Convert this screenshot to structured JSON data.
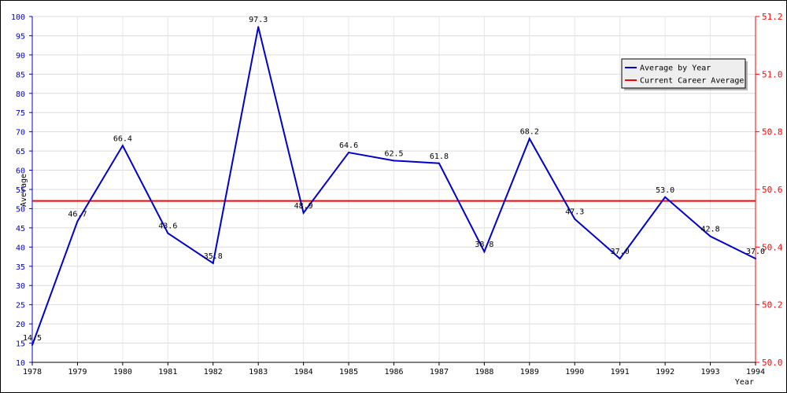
{
  "chart_data": {
    "type": "line",
    "title": "",
    "xlabel": "Year",
    "ylabel": "Average",
    "x": [
      "1978",
      "1979",
      "1980",
      "1981",
      "1982",
      "1983",
      "1984",
      "1985",
      "1986",
      "1987",
      "1988",
      "1989",
      "1990",
      "1991",
      "1992",
      "1993",
      "1994"
    ],
    "series": [
      {
        "name": "Average by Year",
        "color": "#0000cc",
        "axis": "left",
        "values": [
          14.5,
          46.7,
          66.4,
          43.6,
          35.8,
          97.3,
          48.9,
          64.6,
          62.5,
          61.8,
          38.8,
          68.2,
          47.3,
          37.0,
          53.0,
          42.8,
          37.0
        ],
        "labels": [
          "14.5",
          "46.7",
          "66.4",
          "43.6",
          "35.8",
          "97.3",
          "48.9",
          "64.6",
          "62.5",
          "61.8",
          "38.8",
          "68.2",
          "47.3",
          "37.0",
          "53.0",
          "42.8",
          "37.0"
        ]
      },
      {
        "name": "Current Career Average",
        "color": "#ff0000",
        "axis": "left",
        "value": 52.0
      }
    ],
    "y_left": {
      "range": [
        10,
        100
      ],
      "ticks": [
        "10",
        "15",
        "20",
        "25",
        "30",
        "35",
        "40",
        "45",
        "50",
        "55",
        "60",
        "65",
        "70",
        "75",
        "80",
        "85",
        "90",
        "95",
        "100"
      ],
      "color": "#0000cc"
    },
    "y_right": {
      "range": [
        50.0,
        51.2
      ],
      "ticks": [
        "50.0",
        "50.2",
        "50.4",
        "50.6",
        "50.8",
        "51.0",
        "51.2"
      ],
      "color": "#ff0000"
    },
    "grid": true,
    "legend_position": "top-right"
  }
}
